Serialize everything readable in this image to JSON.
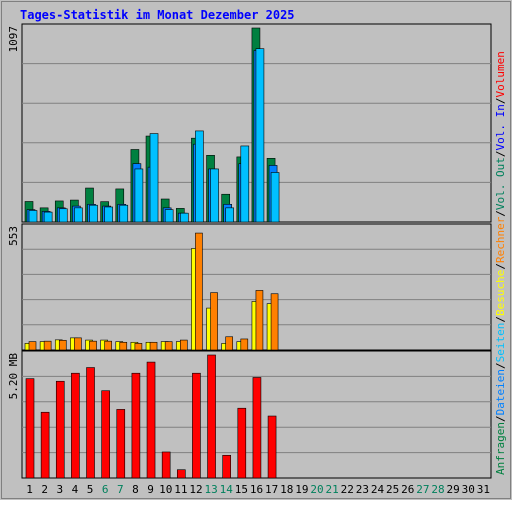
{
  "title": "Tages-Statistik im Monat Dezember 2025",
  "colors": {
    "background": "#c0c0c0",
    "title": "#0000ff",
    "anfragen": "#008040",
    "dateien": "#0080ff",
    "seiten": "#00c0ff",
    "besuche": "#ffff00",
    "rechner": "#ff8000",
    "volumen": "#ff0000",
    "weekend_label": "#00805c"
  },
  "chart_data": [
    {
      "type": "bar",
      "name": "requests",
      "y_label": "1097",
      "ylim": [
        0,
        1097
      ],
      "grid": true,
      "days": [
        1,
        2,
        3,
        4,
        5,
        6,
        7,
        8,
        9,
        10,
        11,
        12,
        13,
        14,
        15,
        16,
        17,
        18,
        19,
        20,
        21,
        22,
        23,
        24,
        25,
        26,
        27,
        28,
        29,
        30,
        31
      ],
      "series": [
        {
          "name": "Anfragen",
          "values": [
            116,
            80,
            119,
            124,
            192,
            115,
            187,
            410,
            486,
            130,
            77,
            474,
            377,
            157,
            368,
            1097,
            360,
            0,
            0,
            0,
            0,
            0,
            0,
            0,
            0,
            0,
            0,
            0,
            0,
            0,
            0
          ]
        },
        {
          "name": "Dateien",
          "values": [
            70,
            60,
            80,
            90,
            100,
            90,
            100,
            330,
            310,
            80,
            50,
            440,
            300,
            100,
            330,
            970,
            320,
            0,
            0,
            0,
            0,
            0,
            0,
            0,
            0,
            0,
            0,
            0,
            0,
            0,
            0
          ]
        },
        {
          "name": "Seiten",
          "values": [
            65,
            56,
            75,
            80,
            95,
            85,
            95,
            300,
            500,
            70,
            50,
            515,
            300,
            80,
            430,
            980,
            280,
            0,
            0,
            0,
            0,
            0,
            0,
            0,
            0,
            0,
            0,
            0,
            0,
            0,
            0
          ]
        }
      ]
    },
    {
      "type": "bar",
      "name": "visits",
      "y_label": "553",
      "ylim": [
        0,
        553
      ],
      "grid": true,
      "days": [
        1,
        2,
        3,
        4,
        5,
        6,
        7,
        8,
        9,
        10,
        11,
        12,
        13,
        14,
        15,
        16,
        17,
        18,
        19,
        20,
        21,
        22,
        23,
        24,
        25,
        26,
        27,
        28,
        29,
        30,
        31
      ],
      "series": [
        {
          "name": "Besuche",
          "values": [
            30,
            38,
            46,
            55,
            45,
            45,
            38,
            35,
            35,
            38,
            38,
            460,
            190,
            30,
            38,
            220,
            210,
            0,
            0,
            0,
            0,
            0,
            0,
            0,
            0,
            0,
            0,
            0,
            0,
            0,
            0
          ]
        },
        {
          "name": "Rechner",
          "values": [
            38,
            40,
            44,
            55,
            40,
            40,
            35,
            30,
            35,
            38,
            45,
            530,
            260,
            60,
            50,
            270,
            255,
            0,
            0,
            0,
            0,
            0,
            0,
            0,
            0,
            0,
            0,
            0,
            0,
            0,
            0
          ]
        }
      ]
    },
    {
      "type": "bar",
      "name": "volume",
      "y_label": "5.20 MB",
      "ylim": [
        0,
        5.2
      ],
      "grid": true,
      "days": [
        1,
        2,
        3,
        4,
        5,
        6,
        7,
        8,
        9,
        10,
        11,
        12,
        13,
        14,
        15,
        16,
        17,
        18,
        19,
        20,
        21,
        22,
        23,
        24,
        25,
        26,
        27,
        28,
        29,
        30,
        31
      ],
      "series": [
        {
          "name": "Volumen",
          "values": [
            4.2,
            2.78,
            4.09,
            4.43,
            4.67,
            3.69,
            2.9,
            4.43,
            4.9,
            1.1,
            0.35,
            4.43,
            5.2,
            0.96,
            2.95,
            4.25,
            2.62,
            0,
            0,
            0,
            0,
            0,
            0,
            0,
            0,
            0,
            0,
            0,
            0,
            0,
            0
          ]
        }
      ]
    }
  ],
  "x_labels": [
    {
      "day": "1",
      "weekend": false
    },
    {
      "day": "2",
      "weekend": false
    },
    {
      "day": "3",
      "weekend": false
    },
    {
      "day": "4",
      "weekend": false
    },
    {
      "day": "5",
      "weekend": false
    },
    {
      "day": "6",
      "weekend": true
    },
    {
      "day": "7",
      "weekend": true
    },
    {
      "day": "8",
      "weekend": false
    },
    {
      "day": "9",
      "weekend": false
    },
    {
      "day": "10",
      "weekend": false
    },
    {
      "day": "11",
      "weekend": false
    },
    {
      "day": "12",
      "weekend": false
    },
    {
      "day": "13",
      "weekend": true
    },
    {
      "day": "14",
      "weekend": true
    },
    {
      "day": "15",
      "weekend": false
    },
    {
      "day": "16",
      "weekend": false
    },
    {
      "day": "17",
      "weekend": false
    },
    {
      "day": "18",
      "weekend": false
    },
    {
      "day": "19",
      "weekend": false
    },
    {
      "day": "20",
      "weekend": true
    },
    {
      "day": "21",
      "weekend": true
    },
    {
      "day": "22",
      "weekend": false
    },
    {
      "day": "23",
      "weekend": false
    },
    {
      "day": "24",
      "weekend": false
    },
    {
      "day": "25",
      "weekend": false
    },
    {
      "day": "26",
      "weekend": false
    },
    {
      "day": "27",
      "weekend": true
    },
    {
      "day": "28",
      "weekend": true
    },
    {
      "day": "29",
      "weekend": false
    },
    {
      "day": "30",
      "weekend": false
    },
    {
      "day": "31",
      "weekend": false
    }
  ],
  "legend_right": {
    "top": [
      {
        "text": "Anfragen",
        "color": "#008040"
      },
      {
        "text": "/",
        "color": "#000000"
      },
      {
        "text": "Dateien",
        "color": "#0080ff"
      },
      {
        "text": "/",
        "color": "#000000"
      },
      {
        "text": "Seiten",
        "color": "#00c0ff"
      },
      {
        "text": "/",
        "color": "#000000"
      },
      {
        "text": "Besuche",
        "color": "#ffff00"
      },
      {
        "text": "/",
        "color": "#000000"
      },
      {
        "text": "Rechner",
        "color": "#ff8000"
      },
      {
        "text": "/",
        "color": "#000000"
      },
      {
        "text": "Vol. Out",
        "color": "#00805c"
      },
      {
        "text": "/",
        "color": "#000000"
      },
      {
        "text": "Vol. In",
        "color": "#0000ff"
      },
      {
        "text": "/",
        "color": "#000000"
      },
      {
        "text": "Volumen",
        "color": "#ff0000"
      }
    ]
  }
}
